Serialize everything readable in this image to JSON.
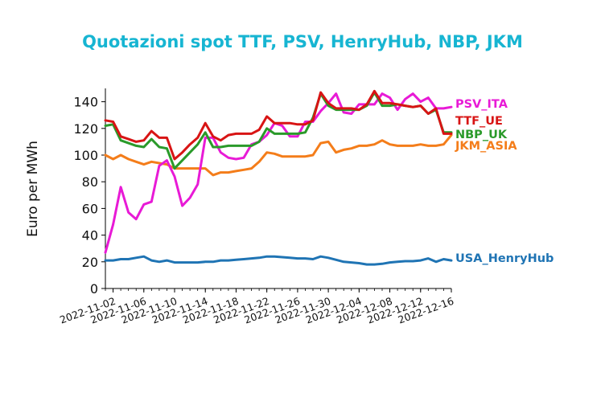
{
  "chart_data": {
    "type": "line",
    "title": "Quotazioni spot TTF, PSV, HenryHub, NBP, JKM",
    "xlabel": "",
    "ylabel": "Euro per MWh",
    "ylim": [
      0,
      150
    ],
    "yticks": [
      0,
      20,
      40,
      60,
      80,
      100,
      120,
      140
    ],
    "xlim": [
      "2022-11-01",
      "2022-12-16"
    ],
    "xticks": [
      "2022-11-02",
      "2022-11-06",
      "2022-11-10",
      "2022-11-14",
      "2022-11-18",
      "2022-11-22",
      "2022-11-26",
      "2022-11-30",
      "2022-12-04",
      "2022-12-08",
      "2022-12-12",
      "2022-12-16"
    ],
    "grid": false,
    "legend": "labels at line ends",
    "colors": {
      "PSV_ITA": "#e81ad6",
      "TTF_UE": "#d81414",
      "NBP_UK": "#2a9a2a",
      "JKM_ASIA": "#f47d1a",
      "USA_HenryHub": "#1f74b4"
    },
    "series": [
      {
        "name": "PSV_ITA",
        "x": [
          "2022-11-01",
          "2022-11-02",
          "2022-11-03",
          "2022-11-04",
          "2022-11-05",
          "2022-11-06",
          "2022-11-07",
          "2022-11-08",
          "2022-11-09",
          "2022-11-10",
          "2022-11-11",
          "2022-11-12",
          "2022-11-13",
          "2022-11-14",
          "2022-11-15",
          "2022-11-16",
          "2022-11-17",
          "2022-11-18",
          "2022-11-19",
          "2022-11-20",
          "2022-11-21",
          "2022-11-22",
          "2022-11-23",
          "2022-11-24",
          "2022-11-25",
          "2022-11-26",
          "2022-11-27",
          "2022-11-28",
          "2022-11-29",
          "2022-11-30",
          "2022-12-01",
          "2022-12-02",
          "2022-12-03",
          "2022-12-04",
          "2022-12-05",
          "2022-12-06",
          "2022-12-07",
          "2022-12-08",
          "2022-12-09",
          "2022-12-10",
          "2022-12-11",
          "2022-12-12",
          "2022-12-13",
          "2022-12-14",
          "2022-12-15",
          "2022-12-16"
        ],
        "values": [
          27,
          48,
          76,
          57,
          52,
          63,
          65,
          92,
          96,
          84,
          62,
          68,
          78,
          113,
          113,
          102,
          98,
          97,
          98,
          108,
          110,
          115,
          124,
          122,
          114,
          114,
          125,
          125,
          133,
          139,
          146,
          132,
          131,
          138,
          138,
          138,
          146,
          143,
          134,
          142,
          146,
          140,
          143,
          135,
          135,
          136
        ]
      },
      {
        "name": "TTF_UE",
        "x": [
          "2022-11-01",
          "2022-11-02",
          "2022-11-03",
          "2022-11-04",
          "2022-11-05",
          "2022-11-06",
          "2022-11-07",
          "2022-11-08",
          "2022-11-09",
          "2022-11-10",
          "2022-11-11",
          "2022-11-12",
          "2022-11-13",
          "2022-11-14",
          "2022-11-15",
          "2022-11-16",
          "2022-11-17",
          "2022-11-18",
          "2022-11-19",
          "2022-11-20",
          "2022-11-21",
          "2022-11-22",
          "2022-11-23",
          "2022-11-24",
          "2022-11-25",
          "2022-11-26",
          "2022-11-27",
          "2022-11-28",
          "2022-11-29",
          "2022-11-30",
          "2022-12-01",
          "2022-12-02",
          "2022-12-03",
          "2022-12-04",
          "2022-12-05",
          "2022-12-06",
          "2022-12-07",
          "2022-12-08",
          "2022-12-09",
          "2022-12-10",
          "2022-12-11",
          "2022-12-12",
          "2022-12-13",
          "2022-12-14",
          "2022-12-15",
          "2022-12-16"
        ],
        "values": [
          126,
          125,
          114,
          112,
          110,
          111,
          118,
          113,
          113,
          97,
          102,
          108,
          113,
          124,
          114,
          111,
          115,
          116,
          116,
          116,
          119,
          129,
          124,
          124,
          124,
          123,
          123,
          126,
          147,
          139,
          135,
          135,
          135,
          134,
          138,
          148,
          139,
          139,
          138,
          137,
          136,
          137,
          131,
          135,
          116,
          116
        ]
      },
      {
        "name": "NBP_UK",
        "x": [
          "2022-11-01",
          "2022-11-02",
          "2022-11-03",
          "2022-11-04",
          "2022-11-05",
          "2022-11-06",
          "2022-11-07",
          "2022-11-08",
          "2022-11-09",
          "2022-11-10",
          "2022-11-11",
          "2022-11-12",
          "2022-11-13",
          "2022-11-14",
          "2022-11-15",
          "2022-11-16",
          "2022-11-17",
          "2022-11-18",
          "2022-11-19",
          "2022-11-20",
          "2022-11-21",
          "2022-11-22",
          "2022-11-23",
          "2022-11-24",
          "2022-11-25",
          "2022-11-26",
          "2022-11-27",
          "2022-11-28",
          "2022-11-29",
          "2022-11-30",
          "2022-12-01",
          "2022-12-02",
          "2022-12-03",
          "2022-12-04",
          "2022-12-05",
          "2022-12-06",
          "2022-12-07",
          "2022-12-08",
          "2022-12-09",
          "2022-12-10",
          "2022-12-11",
          "2022-12-12",
          "2022-12-13",
          "2022-12-14",
          "2022-12-15",
          "2022-12-16"
        ],
        "values": [
          122,
          123,
          111,
          109,
          107,
          106,
          112,
          106,
          105,
          90,
          96,
          102,
          108,
          117,
          106,
          106,
          107,
          107,
          107,
          107,
          110,
          120,
          116,
          116,
          116,
          116,
          117,
          128,
          146,
          137,
          134,
          134,
          134,
          134,
          137,
          147,
          137,
          137,
          138,
          137,
          136,
          137,
          131,
          134,
          117,
          117
        ]
      },
      {
        "name": "JKM_ASIA",
        "x": [
          "2022-11-01",
          "2022-11-02",
          "2022-11-03",
          "2022-11-04",
          "2022-11-05",
          "2022-11-06",
          "2022-11-07",
          "2022-11-08",
          "2022-11-09",
          "2022-11-10",
          "2022-11-11",
          "2022-11-12",
          "2022-11-13",
          "2022-11-14",
          "2022-11-15",
          "2022-11-16",
          "2022-11-17",
          "2022-11-18",
          "2022-11-19",
          "2022-11-20",
          "2022-11-21",
          "2022-11-22",
          "2022-11-23",
          "2022-11-24",
          "2022-11-25",
          "2022-11-26",
          "2022-11-27",
          "2022-11-28",
          "2022-11-29",
          "2022-11-30",
          "2022-12-01",
          "2022-12-02",
          "2022-12-03",
          "2022-12-04",
          "2022-12-05",
          "2022-12-06",
          "2022-12-07",
          "2022-12-08",
          "2022-12-09",
          "2022-12-10",
          "2022-12-11",
          "2022-12-12",
          "2022-12-13",
          "2022-12-14",
          "2022-12-15",
          "2022-12-16"
        ],
        "values": [
          100,
          97,
          100,
          97,
          95,
          93,
          95,
          94,
          93,
          90,
          90,
          90,
          90,
          90,
          85,
          87,
          87,
          88,
          89,
          90,
          95,
          102,
          101,
          99,
          99,
          99,
          99,
          100,
          109,
          110,
          102,
          104,
          105,
          107,
          107,
          108,
          111,
          108,
          107,
          107,
          107,
          108,
          107,
          107,
          108,
          115
        ]
      },
      {
        "name": "USA_HenryHub",
        "x": [
          "2022-11-01",
          "2022-11-02",
          "2022-11-03",
          "2022-11-04",
          "2022-11-05",
          "2022-11-06",
          "2022-11-07",
          "2022-11-08",
          "2022-11-09",
          "2022-11-10",
          "2022-11-11",
          "2022-11-12",
          "2022-11-13",
          "2022-11-14",
          "2022-11-15",
          "2022-11-16",
          "2022-11-17",
          "2022-11-18",
          "2022-11-19",
          "2022-11-20",
          "2022-11-21",
          "2022-11-22",
          "2022-11-23",
          "2022-11-24",
          "2022-11-25",
          "2022-11-26",
          "2022-11-27",
          "2022-11-28",
          "2022-11-29",
          "2022-11-30",
          "2022-12-01",
          "2022-12-02",
          "2022-12-03",
          "2022-12-04",
          "2022-12-05",
          "2022-12-06",
          "2022-12-07",
          "2022-12-08",
          "2022-12-09",
          "2022-12-10",
          "2022-12-11",
          "2022-12-12",
          "2022-12-13",
          "2022-12-14",
          "2022-12-15",
          "2022-12-16"
        ],
        "values": [
          21,
          21,
          22,
          22,
          23,
          24,
          21,
          20,
          21,
          19.5,
          19.5,
          19.5,
          19.5,
          20,
          20,
          21,
          21,
          21.5,
          22,
          22.5,
          23,
          24,
          24,
          23.5,
          23,
          22.5,
          22.5,
          22,
          24,
          23,
          21.5,
          20,
          19.5,
          19,
          18,
          18,
          18.5,
          19.5,
          20,
          20.5,
          20.5,
          21,
          22.5,
          20,
          22,
          21
        ]
      }
    ]
  }
}
